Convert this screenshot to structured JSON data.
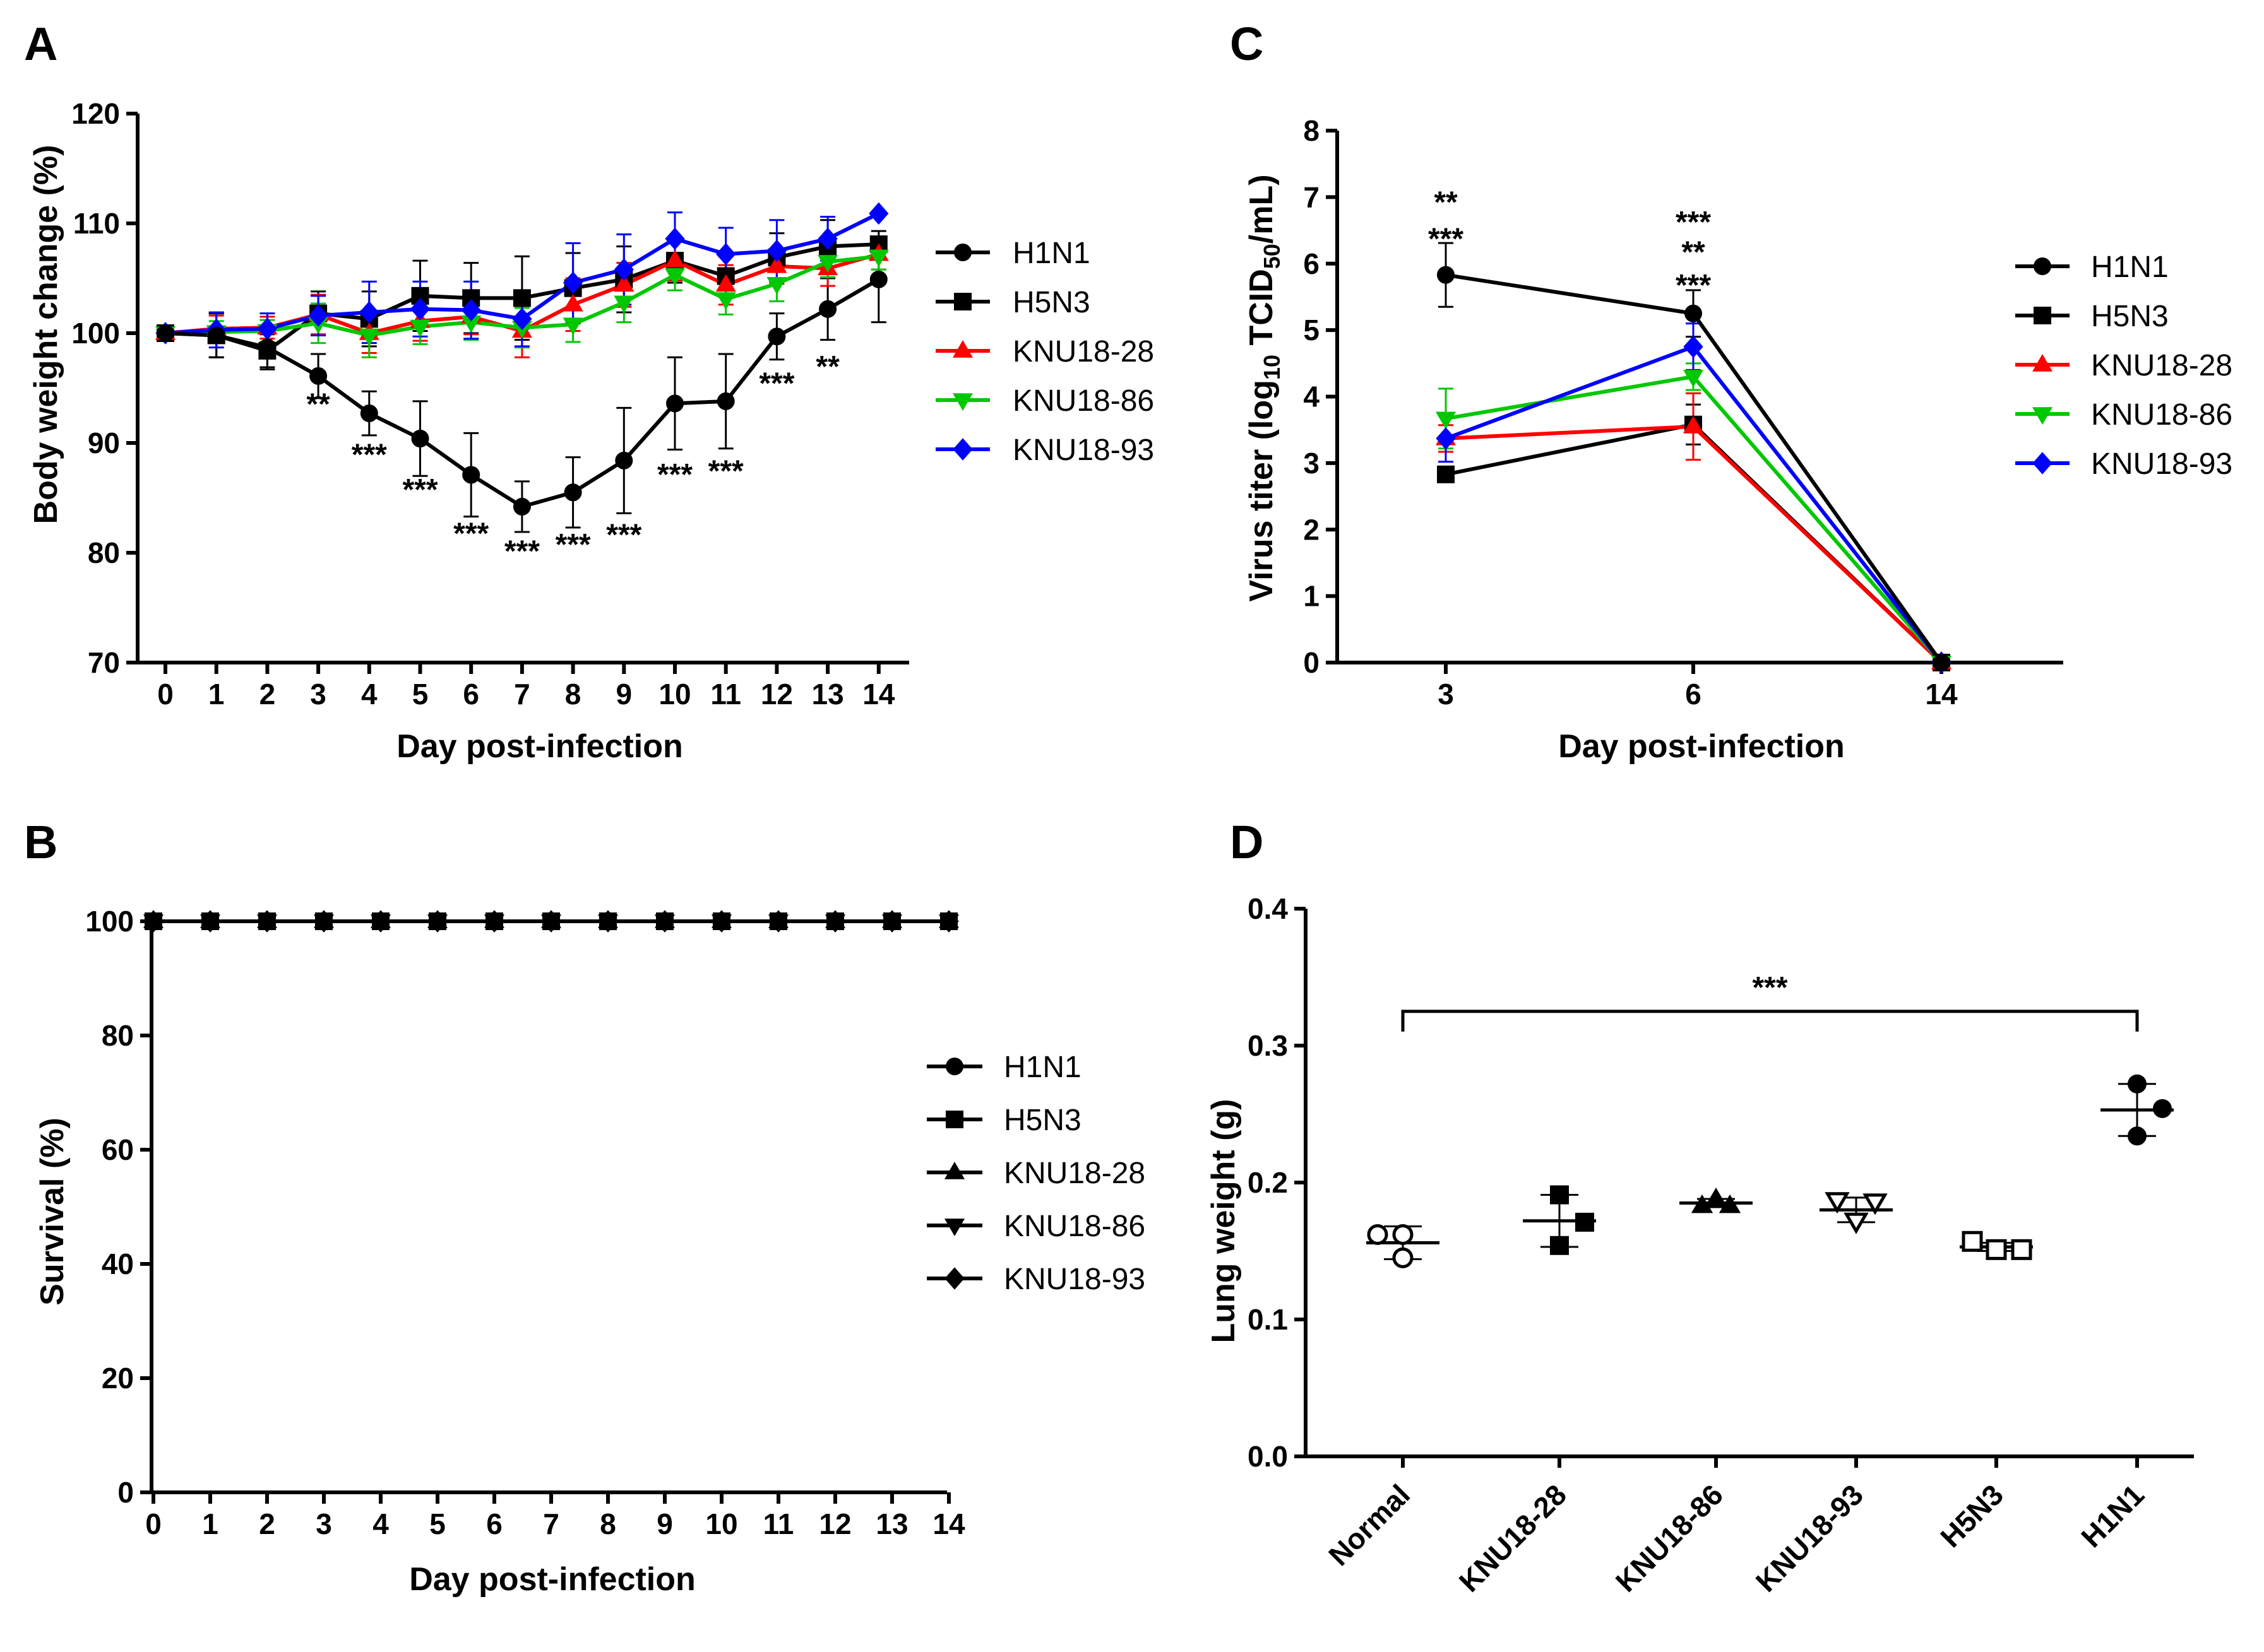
{
  "colors": {
    "H1N1": "#000000",
    "H5N3": "#000000",
    "KNU18-28": "#ff0000",
    "KNU18-86": "#00c800",
    "KNU18-93": "#0000ff"
  },
  "chart_data": [
    {
      "panel": "A",
      "type": "line",
      "xlabel": "Day post-infection",
      "ylabel": "Body weight change (%)",
      "x": [
        0,
        1,
        2,
        3,
        4,
        5,
        6,
        7,
        8,
        9,
        10,
        11,
        12,
        13,
        14
      ],
      "ylim": [
        70,
        120
      ],
      "yticks": [
        70,
        80,
        90,
        100,
        110,
        120
      ],
      "series": [
        {
          "name": "H1N1",
          "marker": "circle",
          "color": "#000000",
          "values": [
            100,
            99.8,
            98.7,
            96.1,
            92.7,
            90.4,
            87.1,
            84.2,
            85.5,
            88.4,
            93.6,
            93.8,
            99.7,
            102.2,
            104.9
          ],
          "errors": [
            0,
            2.0,
            2.0,
            2.0,
            2.0,
            3.4,
            3.8,
            2.3,
            3.2,
            4.8,
            4.2,
            4.3,
            2.1,
            2.8,
            3.9
          ]
        },
        {
          "name": "H5N3",
          "marker": "square",
          "color": "#000000",
          "values": [
            100,
            99.8,
            98.4,
            101.8,
            101.3,
            103.4,
            103.2,
            103.2,
            104.1,
            104.9,
            106.6,
            105.2,
            106.9,
            107.9,
            108.1
          ],
          "errors": [
            0,
            2.0,
            1.5,
            2.0,
            2.5,
            3.2,
            3.2,
            3.8,
            3.2,
            3.0,
            2.0,
            1.8,
            2.2,
            2.4,
            1.2
          ]
        },
        {
          "name": "KNU18-28",
          "marker": "triangle-up",
          "color": "#ff0000",
          "values": [
            100,
            100.4,
            100.5,
            101.7,
            100.0,
            101.1,
            101.5,
            100.2,
            102.6,
            104.4,
            106.6,
            104.4,
            106.1,
            105.9,
            107.2
          ],
          "errors": [
            0,
            1.2,
            1.0,
            1.8,
            1.8,
            1.8,
            1.6,
            2.4,
            2.4,
            2.0,
            1.8,
            1.8,
            1.6,
            1.6,
            1.4
          ]
        },
        {
          "name": "KNU18-86",
          "marker": "triangle-down",
          "color": "#00c800",
          "values": [
            100,
            100.1,
            100.2,
            100.9,
            99.8,
            100.6,
            101.0,
            100.5,
            100.8,
            102.8,
            105.3,
            103.1,
            104.5,
            106.5,
            107.0
          ],
          "errors": [
            0,
            1.0,
            1.0,
            1.8,
            2.0,
            1.6,
            1.6,
            1.8,
            1.6,
            1.8,
            1.4,
            1.4,
            1.6,
            1.4,
            1.2
          ]
        },
        {
          "name": "KNU18-93",
          "marker": "diamond",
          "color": "#0000ff",
          "values": [
            100,
            100.3,
            100.4,
            101.6,
            101.9,
            102.2,
            102.1,
            101.3,
            104.6,
            105.8,
            108.6,
            107.2,
            107.5,
            108.6,
            110.9
          ],
          "errors": [
            0,
            1.6,
            1.4,
            1.8,
            2.8,
            2.5,
            2.6,
            2.5,
            3.6,
            3.2,
            2.4,
            2.4,
            2.8,
            2.0,
            0
          ]
        }
      ],
      "annotations": [
        {
          "x": 3,
          "y": 94.0,
          "text": "**"
        },
        {
          "x": 4,
          "y": 89.4,
          "text": "***"
        },
        {
          "x": 5,
          "y": 86.2,
          "text": "***"
        },
        {
          "x": 6,
          "y": 82.2,
          "text": "***"
        },
        {
          "x": 7,
          "y": 80.6,
          "text": "***"
        },
        {
          "x": 8,
          "y": 81.2,
          "text": "***"
        },
        {
          "x": 9,
          "y": 82.1,
          "text": "***"
        },
        {
          "x": 10,
          "y": 87.6,
          "text": "***"
        },
        {
          "x": 11,
          "y": 87.9,
          "text": "***"
        },
        {
          "x": 12,
          "y": 95.9,
          "text": "***"
        },
        {
          "x": 13,
          "y": 97.4,
          "text": "**"
        }
      ]
    },
    {
      "panel": "B",
      "type": "line",
      "xlabel": "Day post-infection",
      "ylabel": "Survival (%)",
      "x": [
        0,
        1,
        2,
        3,
        4,
        5,
        6,
        7,
        8,
        9,
        10,
        11,
        12,
        13,
        14
      ],
      "ylim": [
        0,
        100
      ],
      "yticks": [
        0,
        20,
        40,
        60,
        80,
        100
      ],
      "series": [
        {
          "name": "H1N1",
          "marker": "circle",
          "color": "#000000",
          "values": [
            100,
            100,
            100,
            100,
            100,
            100,
            100,
            100,
            100,
            100,
            100,
            100,
            100,
            100,
            100
          ]
        },
        {
          "name": "H5N3",
          "marker": "square",
          "color": "#000000",
          "values": [
            100,
            100,
            100,
            100,
            100,
            100,
            100,
            100,
            100,
            100,
            100,
            100,
            100,
            100,
            100
          ]
        },
        {
          "name": "KNU18-28",
          "marker": "triangle-up",
          "color": "#000000",
          "values": [
            100,
            100,
            100,
            100,
            100,
            100,
            100,
            100,
            100,
            100,
            100,
            100,
            100,
            100,
            100
          ]
        },
        {
          "name": "KNU18-86",
          "marker": "triangle-down",
          "color": "#000000",
          "values": [
            100,
            100,
            100,
            100,
            100,
            100,
            100,
            100,
            100,
            100,
            100,
            100,
            100,
            100,
            100
          ]
        },
        {
          "name": "KNU18-93",
          "marker": "diamond",
          "color": "#000000",
          "values": [
            100,
            100,
            100,
            100,
            100,
            100,
            100,
            100,
            100,
            100,
            100,
            100,
            100,
            100,
            100
          ]
        }
      ]
    },
    {
      "panel": "C",
      "type": "line",
      "xlabel": "Day post-infection",
      "ylabel_parts": [
        "Virus titer (log",
        "10",
        " TCID",
        "50",
        "/mL)"
      ],
      "categories": [
        "3",
        "6",
        "14"
      ],
      "ylim": [
        0,
        8
      ],
      "yticks": [
        0,
        1,
        2,
        3,
        4,
        5,
        6,
        7,
        8
      ],
      "series": [
        {
          "name": "H1N1",
          "marker": "circle",
          "color": "#000000",
          "values": [
            5.83,
            5.25,
            0
          ],
          "errors": [
            0.48,
            0.35,
            0
          ]
        },
        {
          "name": "H5N3",
          "marker": "square",
          "color": "#000000",
          "values": [
            2.83,
            3.58,
            0
          ],
          "errors": [
            0,
            0.3,
            0
          ]
        },
        {
          "name": "KNU18-28",
          "marker": "triangle-up",
          "color": "#ff0000",
          "values": [
            3.37,
            3.55,
            0
          ],
          "errors": [
            0.2,
            0.5,
            0
          ]
        },
        {
          "name": "KNU18-86",
          "marker": "triangle-down",
          "color": "#00c800",
          "values": [
            3.67,
            4.3,
            0
          ],
          "errors": [
            0.45,
            0.2,
            0
          ]
        },
        {
          "name": "KNU18-93",
          "marker": "diamond",
          "color": "#0000ff",
          "values": [
            3.37,
            4.75,
            0
          ],
          "errors": [
            0.35,
            0.35,
            0
          ]
        }
      ],
      "annotations": [
        {
          "category": "3",
          "y": 6.45,
          "text": "***",
          "color": "#000000"
        },
        {
          "category": "3",
          "y": 7.0,
          "text": "**",
          "color": "#00c800"
        },
        {
          "category": "6",
          "y": 5.75,
          "text": "***",
          "color": "#000000"
        },
        {
          "category": "6",
          "y": 6.25,
          "text": "**",
          "color": "#00c800"
        },
        {
          "category": "6",
          "y": 6.7,
          "text": "***",
          "color": "#0000ff"
        }
      ]
    },
    {
      "panel": "D",
      "type": "scatter",
      "ylabel": "Lung weight (g)",
      "categories": [
        "Normal",
        "KNU18-28",
        "KNU18-86",
        "KNU18-93",
        "H5N3",
        "H1N1"
      ],
      "markers": [
        "circle-open",
        "square",
        "triangle-up",
        "triangle-down-open",
        "square-open",
        "circle"
      ],
      "ylim": [
        0,
        0.4
      ],
      "yticks": [
        "0.0",
        "0.1",
        "0.2",
        "0.3",
        "0.4"
      ],
      "points": [
        [
          0.162,
          0.162,
          0.145
        ],
        [
          0.191,
          0.171,
          0.154
        ],
        [
          0.188,
          0.183,
          0.183
        ],
        [
          0.187,
          0.186,
          0.172
        ],
        [
          0.157,
          0.151,
          0.151
        ],
        [
          0.272,
          0.254,
          0.234
        ]
      ],
      "means": [
        0.156,
        0.172,
        0.185,
        0.18,
        0.153,
        0.253
      ],
      "sd": [
        0.012,
        0.019,
        0.003,
        0.009,
        0.003,
        0.019
      ],
      "significance": {
        "from": "Normal",
        "to": "H1N1",
        "y": 0.325,
        "text": "***"
      }
    }
  ],
  "panels": {
    "A": {
      "letter": "A",
      "xlabel": "Day post-infection",
      "ylabel": "Body weight change (%)"
    },
    "B": {
      "letter": "B",
      "xlabel": "Day post-infection",
      "ylabel": "Survival (%)"
    },
    "C": {
      "letter": "C",
      "xlabel": "Day post-infection",
      "ylabel_a": "Virus titer (log",
      "ylabel_sub1": "10",
      "ylabel_b": " TCID",
      "ylabel_sub2": "50",
      "ylabel_c": "/mL)"
    },
    "D": {
      "letter": "D",
      "ylabel": "Lung weight (g)"
    }
  },
  "legend": [
    "H1N1",
    "H5N3",
    "KNU18-28",
    "KNU18-86",
    "KNU18-93"
  ]
}
